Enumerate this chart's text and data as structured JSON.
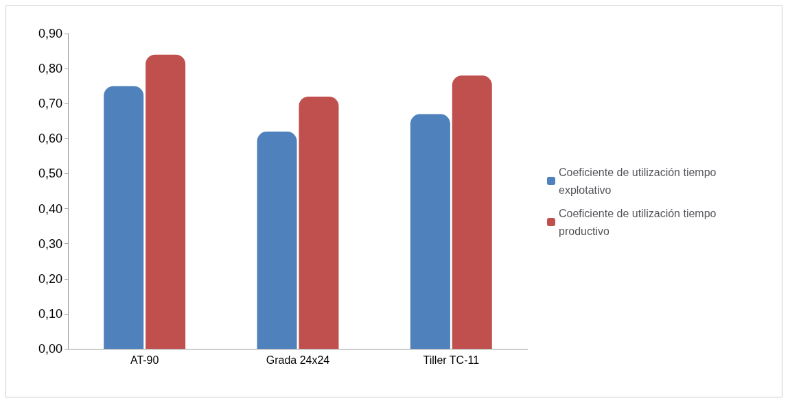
{
  "chart_data": {
    "type": "bar",
    "categories": [
      "AT-90",
      "Grada 24x24",
      "Tiller TC-11"
    ],
    "series": [
      {
        "name": "Coeficiente de utilización tiempo explotativo",
        "color": "#4f81bd",
        "values": [
          0.75,
          0.62,
          0.67
        ]
      },
      {
        "name": "Coeficiente de utilización tiempo productivo",
        "color": "#c0504d",
        "values": [
          0.84,
          0.72,
          0.78
        ]
      }
    ],
    "ylim": [
      0,
      0.9
    ],
    "yticks": [
      {
        "value": 0,
        "label": "0,00"
      },
      {
        "value": 0.1,
        "label": "0,10"
      },
      {
        "value": 0.2,
        "label": "0,20"
      },
      {
        "value": 0.3,
        "label": "0,30"
      },
      {
        "value": 0.4,
        "label": "0,40"
      },
      {
        "value": 0.5,
        "label": "0,50"
      },
      {
        "value": 0.6,
        "label": "0,60"
      },
      {
        "value": 0.7,
        "label": "0,70"
      },
      {
        "value": 0.8,
        "label": "0,80"
      },
      {
        "value": 0.9,
        "label": "0,90"
      }
    ],
    "grid": false,
    "legend": "right"
  }
}
